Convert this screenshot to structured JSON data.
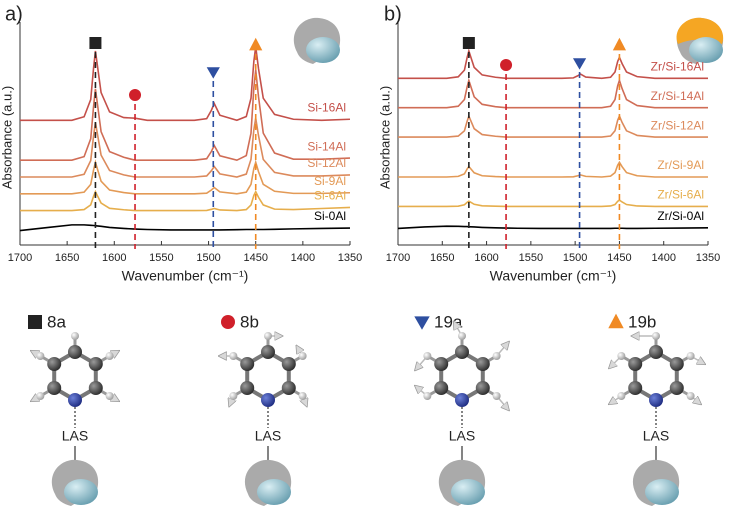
{
  "chart_data": [
    {
      "type": "line",
      "panel_label": "a)",
      "xlabel": "Wavenumber (cm⁻¹)",
      "ylabel": "Absorbance (a.u.)",
      "xlim": [
        1700,
        1350
      ],
      "xticks": [
        1700,
        1650,
        1600,
        1550,
        1500,
        1450,
        1400,
        1350
      ],
      "ylim": [
        0,
        10
      ],
      "bands": [
        1620,
        1578,
        1495,
        1450
      ],
      "x": [
        1700,
        1670,
        1645,
        1632,
        1625,
        1622,
        1620,
        1618,
        1614,
        1605,
        1590,
        1578,
        1565,
        1540,
        1515,
        1502,
        1497,
        1494,
        1488,
        1470,
        1460,
        1455,
        1452,
        1450,
        1447,
        1442,
        1430,
        1410,
        1380,
        1350
      ],
      "series": [
        {
          "name": "Si-16Al",
          "color": "#c4504a",
          "values": [
            5.7,
            5.7,
            5.7,
            5.87,
            6.69,
            8.18,
            9.0,
            8.34,
            7.02,
            6.1,
            5.83,
            5.8,
            5.7,
            5.7,
            5.7,
            5.78,
            6.18,
            6.5,
            5.94,
            5.7,
            5.88,
            6.75,
            8.5,
            9.2,
            8.15,
            6.75,
            5.98,
            5.75,
            5.7,
            5.75
          ]
        },
        {
          "name": "Si-14Al",
          "color": "#d06d56",
          "values": [
            3.8,
            3.8,
            3.8,
            3.97,
            4.82,
            6.35,
            7.2,
            6.52,
            5.16,
            4.21,
            3.94,
            3.8,
            3.8,
            3.8,
            3.8,
            3.87,
            4.22,
            4.5,
            4.01,
            3.8,
            4.02,
            5.09,
            7.24,
            8.1,
            6.81,
            5.09,
            4.14,
            3.85,
            3.85,
            3.9
          ]
        },
        {
          "name": "Si-12Al",
          "color": "#dc8a5c",
          "values": [
            3.0,
            3.0,
            3.0,
            3.13,
            3.78,
            4.95,
            5.6,
            5.08,
            4.04,
            3.31,
            3.1,
            3.0,
            3.0,
            3.0,
            3.0,
            3.05,
            3.3,
            3.5,
            3.15,
            3.0,
            3.14,
            3.84,
            5.24,
            5.8,
            4.96,
            3.84,
            3.22,
            3.05,
            3.05,
            3.1
          ]
        },
        {
          "name": "Si-9Al",
          "color": "#e39a56",
          "values": [
            2.2,
            2.2,
            2.2,
            2.28,
            2.65,
            3.33,
            3.7,
            3.4,
            2.8,
            2.38,
            2.26,
            2.2,
            2.2,
            2.2,
            2.2,
            2.23,
            2.38,
            2.5,
            2.29,
            2.2,
            2.28,
            2.65,
            3.4,
            3.7,
            3.25,
            2.65,
            2.32,
            2.22,
            2.22,
            2.25
          ]
        },
        {
          "name": "Si-6Al",
          "color": "#e6ae4c",
          "values": [
            1.4,
            1.4,
            1.4,
            1.45,
            1.67,
            2.08,
            2.3,
            2.12,
            1.76,
            1.51,
            1.44,
            1.4,
            1.4,
            1.4,
            1.4,
            1.41,
            1.46,
            1.5,
            1.43,
            1.4,
            1.45,
            1.67,
            2.12,
            2.3,
            2.03,
            1.67,
            1.47,
            1.45,
            1.5,
            1.55
          ]
        },
        {
          "name": "Si-0Al",
          "color": "#000000",
          "values": [
            0.45,
            0.6,
            0.72,
            0.72,
            0.7,
            0.69,
            0.68,
            0.67,
            0.65,
            0.6,
            0.55,
            0.52,
            0.5,
            0.48,
            0.48,
            0.48,
            0.48,
            0.48,
            0.48,
            0.49,
            0.5,
            0.5,
            0.5,
            0.5,
            0.5,
            0.5,
            0.51,
            0.53,
            0.55,
            0.57
          ]
        }
      ]
    },
    {
      "type": "line",
      "panel_label": "b)",
      "xlabel": "Wavenumber (cm⁻¹)",
      "ylabel": "Absorbance (a.u.)",
      "xlim": [
        1700,
        1350
      ],
      "xticks": [
        1700,
        1650,
        1600,
        1550,
        1500,
        1450,
        1400,
        1350
      ],
      "ylim": [
        0,
        10
      ],
      "bands": [
        1620,
        1578,
        1495,
        1450
      ],
      "x": [
        1700,
        1670,
        1645,
        1632,
        1625,
        1622,
        1620,
        1618,
        1614,
        1605,
        1590,
        1578,
        1565,
        1540,
        1515,
        1502,
        1497,
        1494,
        1488,
        1470,
        1460,
        1455,
        1452,
        1450,
        1447,
        1442,
        1430,
        1410,
        1380,
        1350
      ],
      "series": [
        {
          "name": "Zr/Si-16Al",
          "color": "#c4504a",
          "values": [
            7.7,
            7.7,
            7.7,
            7.77,
            8.09,
            8.68,
            9.0,
            8.74,
            8.22,
            7.86,
            7.75,
            7.7,
            7.7,
            7.7,
            7.7,
            7.72,
            7.82,
            7.9,
            7.76,
            7.7,
            7.75,
            8.0,
            8.5,
            8.7,
            8.4,
            8.0,
            7.78,
            7.7,
            7.7,
            7.7
          ]
        },
        {
          "name": "Zr/Si-14Al",
          "color": "#d06d56",
          "values": [
            6.3,
            6.3,
            6.3,
            6.37,
            6.69,
            7.28,
            7.6,
            7.34,
            6.82,
            6.46,
            6.35,
            6.3,
            6.3,
            6.3,
            6.3,
            6.3,
            6.3,
            6.3,
            6.3,
            6.3,
            6.37,
            6.69,
            7.34,
            7.6,
            7.21,
            6.69,
            6.4,
            6.3,
            6.3,
            6.3
          ]
        },
        {
          "name": "Zr/Si-12Al",
          "color": "#dc8a5c",
          "values": [
            4.9,
            4.9,
            4.9,
            4.95,
            5.2,
            5.65,
            5.9,
            5.7,
            5.3,
            5.02,
            4.94,
            4.9,
            4.9,
            4.9,
            4.9,
            4.9,
            4.9,
            4.9,
            4.9,
            4.9,
            4.95,
            5.2,
            5.7,
            5.9,
            5.6,
            5.2,
            4.98,
            4.9,
            4.9,
            4.9
          ]
        },
        {
          "name": "Zr/Si-9Al",
          "color": "#e39a56",
          "values": [
            3.0,
            3.0,
            3.0,
            3.03,
            3.15,
            3.38,
            3.5,
            3.4,
            3.2,
            3.06,
            3.02,
            3.0,
            3.0,
            3.0,
            3.0,
            3.01,
            3.06,
            3.1,
            3.03,
            3.0,
            3.04,
            3.21,
            3.56,
            3.7,
            3.49,
            3.21,
            3.06,
            3.0,
            3.0,
            3.0
          ]
        },
        {
          "name": "Zr/Si-6Al",
          "color": "#e6ae4c",
          "values": [
            1.6,
            1.6,
            1.6,
            1.61,
            1.68,
            1.79,
            1.85,
            1.8,
            1.7,
            1.63,
            1.61,
            1.6,
            1.6,
            1.6,
            1.6,
            1.6,
            1.6,
            1.6,
            1.6,
            1.6,
            1.62,
            1.69,
            1.84,
            1.9,
            1.81,
            1.69,
            1.62,
            1.6,
            1.6,
            1.6
          ]
        },
        {
          "name": "Zr/Si-0Al",
          "color": "#000000",
          "values": [
            0.55,
            0.62,
            0.66,
            0.65,
            0.64,
            0.64,
            0.63,
            0.63,
            0.62,
            0.6,
            0.58,
            0.57,
            0.56,
            0.55,
            0.55,
            0.55,
            0.55,
            0.55,
            0.55,
            0.55,
            0.55,
            0.56,
            0.56,
            0.56,
            0.56,
            0.55,
            0.55,
            0.56,
            0.57,
            0.58
          ]
        }
      ]
    }
  ],
  "modes": [
    {
      "label": "8a",
      "shape": "square",
      "color": "#222222",
      "site": "LAS"
    },
    {
      "label": "8b",
      "shape": "circle",
      "color": "#d0202a",
      "site": "LAS"
    },
    {
      "label": "19a",
      "shape": "triangle-down",
      "color": "#2e4fa0",
      "site": "LAS"
    },
    {
      "label": "19b",
      "shape": "triangle-up",
      "color": "#f08a24",
      "site": "LAS"
    }
  ]
}
